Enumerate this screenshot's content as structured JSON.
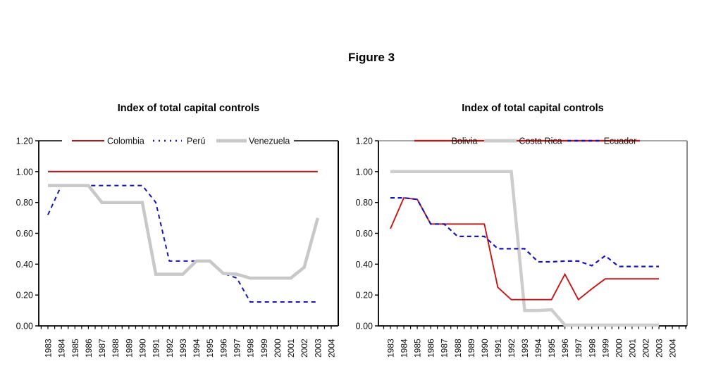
{
  "figure_title": "Figure 3",
  "background": "#ffffff",
  "text_color": "#111111",
  "chart_data": [
    {
      "type": "line",
      "title": "Index of total capital controls",
      "x": [
        1983,
        1984,
        1985,
        1986,
        1987,
        1988,
        1989,
        1990,
        1991,
        1992,
        1993,
        1994,
        1995,
        1996,
        1997,
        1998,
        1999,
        2000,
        2001,
        2002,
        2003
      ],
      "x_axis_labels": [
        "1983",
        "1984",
        "1985",
        "1986",
        "1987",
        "1988",
        "1989",
        "1990",
        "1991",
        "1992",
        "1993",
        "1994",
        "1995",
        "1996",
        "1997",
        "1998",
        "1999",
        "2000",
        "2001",
        "2002",
        "2003",
        "2004"
      ],
      "ylim": [
        0,
        1.2
      ],
      "y_tick_labels": [
        "1.20",
        "1.00",
        "0.80",
        "0.60",
        "0.40",
        "0.20",
        "0.00"
      ],
      "grid": false,
      "legend_position": "top-inside",
      "frame_top_right_color": "#000000",
      "draw_order": [
        1,
        0,
        2
      ],
      "series": [
        {
          "name": "Colombia",
          "color": "#b01818",
          "line_style": "solid",
          "line_width": 2,
          "values": [
            1.0,
            1.0,
            1.0,
            1.0,
            1.0,
            1.0,
            1.0,
            1.0,
            1.0,
            1.0,
            1.0,
            1.0,
            1.0,
            1.0,
            1.0,
            1.0,
            1.0,
            1.0,
            1.0,
            1.0,
            1.0
          ]
        },
        {
          "name": "Perú",
          "color": "#1515bd",
          "line_style": "dashed",
          "line_width": 2,
          "values": [
            0.72,
            0.91,
            0.91,
            0.91,
            0.91,
            0.91,
            0.91,
            0.91,
            0.8,
            0.42,
            0.42,
            0.42,
            0.42,
            0.34,
            0.31,
            0.155,
            0.155,
            0.155,
            0.155,
            0.155,
            0.155
          ]
        },
        {
          "name": "Venezuela",
          "color": "#c8c8c8",
          "line_style": "solid",
          "line_width": 4.5,
          "values": [
            0.91,
            0.91,
            0.91,
            0.91,
            0.8,
            0.8,
            0.8,
            0.8,
            0.335,
            0.335,
            0.335,
            0.42,
            0.42,
            0.34,
            0.335,
            0.31,
            0.31,
            0.31,
            0.31,
            0.38,
            0.7
          ]
        }
      ]
    },
    {
      "type": "line",
      "title": "Index of total capital controls",
      "x": [
        1983,
        1984,
        1985,
        1986,
        1987,
        1988,
        1989,
        1990,
        1991,
        1992,
        1993,
        1994,
        1995,
        1996,
        1997,
        1998,
        1999,
        2000,
        2001,
        2002,
        2003
      ],
      "x_axis_labels": [
        "1983",
        "1984",
        "1985",
        "1986",
        "1987",
        "1988",
        "1989",
        "1990",
        "1991",
        "1992",
        "1993",
        "1994",
        "1995",
        "1996",
        "1997",
        "1998",
        "1999",
        "2000",
        "2001",
        "2002",
        "2003",
        "2004"
      ],
      "ylim": [
        0,
        1.2
      ],
      "y_tick_labels": [
        "1.20",
        "1.00",
        "0.80",
        "0.60",
        "0.40",
        "0.20",
        "0.00"
      ],
      "grid": false,
      "legend_position": "top-inside",
      "frame_top_right_color": "#8c8c8c",
      "draw_order": [
        1,
        0,
        2
      ],
      "series": [
        {
          "name": "Bolivia",
          "color": "#cc1212",
          "line_style": "solid",
          "line_width": 1.9,
          "values": [
            0.63,
            0.83,
            0.82,
            0.66,
            0.66,
            0.66,
            0.66,
            0.66,
            0.25,
            0.17,
            0.17,
            0.17,
            0.17,
            0.335,
            0.17,
            0.24,
            0.305,
            0.305,
            0.305,
            0.305,
            0.305
          ]
        },
        {
          "name": "Costa Rica",
          "color": "#cdcdcd",
          "line_style": "solid",
          "line_width": 4.5,
          "values": [
            1.0,
            1.0,
            1.0,
            1.0,
            1.0,
            1.0,
            1.0,
            1.0,
            1.0,
            1.0,
            0.1,
            0.1,
            0.105,
            0.005,
            0.005,
            0.005,
            0.005,
            0.005,
            0.005,
            0.005,
            0.005
          ]
        },
        {
          "name": "Ecuador",
          "color": "#1515bd",
          "line_style": "dashed",
          "line_width": 2.2,
          "values": [
            0.83,
            0.83,
            0.82,
            0.66,
            0.66,
            0.58,
            0.58,
            0.58,
            0.5,
            0.5,
            0.5,
            0.415,
            0.415,
            0.42,
            0.42,
            0.39,
            0.455,
            0.385,
            0.385,
            0.385,
            0.385
          ]
        }
      ]
    }
  ]
}
